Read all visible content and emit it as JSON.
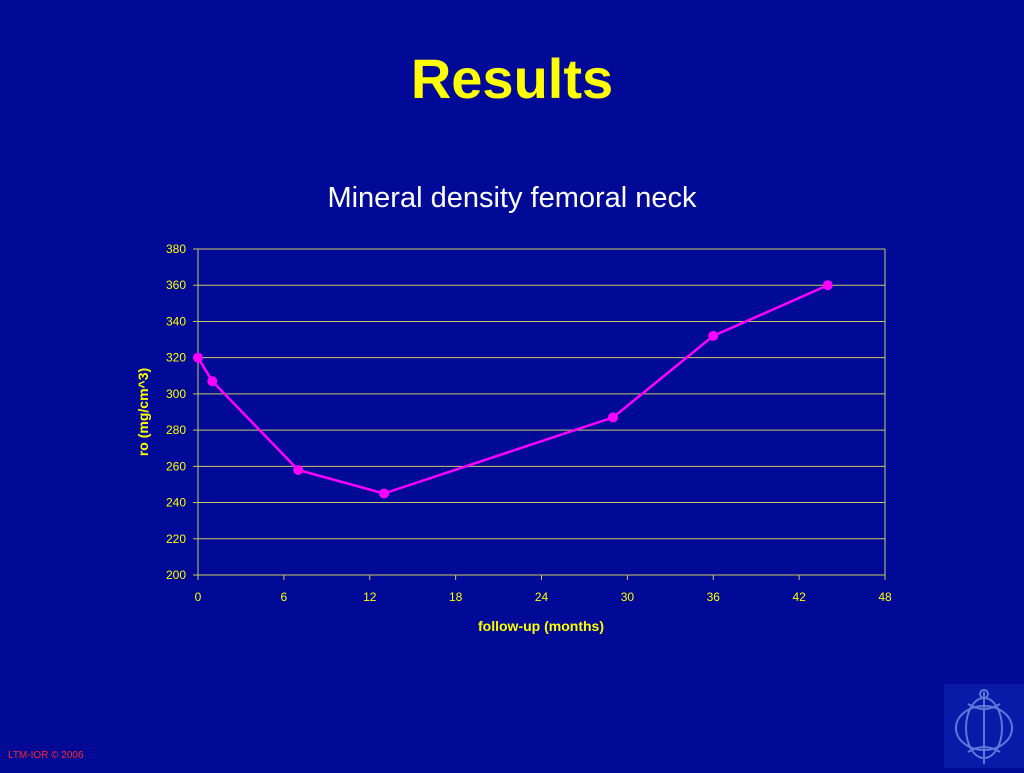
{
  "slide": {
    "title": "Results",
    "footer": "LTM-IOR © 2006"
  },
  "colors": {
    "background": "#000a96",
    "title": "#ffff00",
    "chart_title": "#ffffff",
    "axis_text": "#ffff00",
    "gridline": "#c8c864",
    "series_line": "#ff00ff"
  },
  "chart_data": {
    "type": "line",
    "title": "Mineral density femoral neck",
    "xlabel": "follow-up (months)",
    "ylabel": "ro (mg/cm^3)",
    "xlim": [
      0,
      48
    ],
    "ylim": [
      200,
      380
    ],
    "xticks": [
      0,
      6,
      12,
      18,
      24,
      30,
      36,
      42,
      48
    ],
    "yticks": [
      200,
      220,
      240,
      260,
      280,
      300,
      320,
      340,
      360,
      380
    ],
    "grid": "horizontal",
    "series": [
      {
        "x": [
          0,
          1,
          7,
          13,
          29,
          36,
          44
        ],
        "y": [
          320,
          307,
          258,
          245,
          287,
          332,
          360
        ]
      }
    ]
  },
  "logo": {
    "icon": "ior-monogram-icon"
  }
}
